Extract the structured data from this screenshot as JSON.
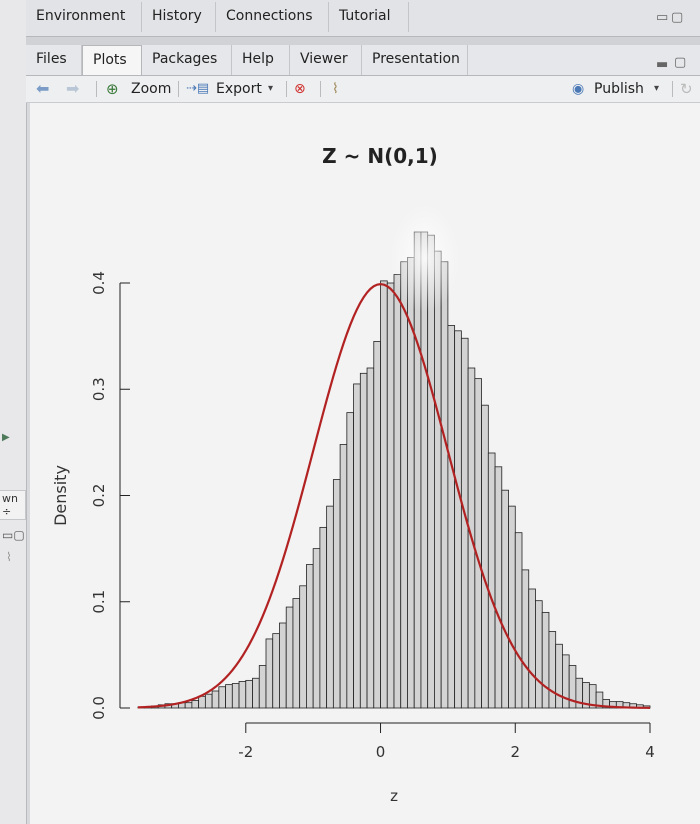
{
  "top_tabs": [
    "Environment",
    "History",
    "Connections",
    "Tutorial"
  ],
  "sub_tabs": [
    "Files",
    "Plots",
    "Packages",
    "Help",
    "Viewer",
    "Presentation"
  ],
  "active_sub_tab": "Plots",
  "toolbar": {
    "zoom_label": "Zoom",
    "export_label": "Export",
    "publish_label": "Publish"
  },
  "left_strip": {
    "dropdown_text": "wn"
  },
  "icons": [
    "back-arrow-icon",
    "forward-arrow-icon",
    "zoom-icon",
    "export-icon",
    "remove-plot-icon",
    "broom-icon",
    "publish-icon",
    "refresh-icon",
    "minimize-icon",
    "maximize-icon"
  ],
  "colors": {
    "curve": "#b22222",
    "bar_fill": "#d3d3d3",
    "bar_stroke": "#222222"
  },
  "chart_data": {
    "type": "bar",
    "title": "Z ~ N(0,1)",
    "xlabel": "z",
    "ylabel": "Density",
    "xlim": [
      -3.6,
      4.0
    ],
    "ylim": [
      0,
      0.45
    ],
    "x_ticks": [
      "-2",
      "0",
      "2",
      "4"
    ],
    "y_ticks": [
      "0.0",
      "0.1",
      "0.2",
      "0.3",
      "0.4"
    ],
    "bin_width": 0.1,
    "bins_start": -3.6,
    "density": [
      0.001,
      0.001,
      0.002,
      0.003,
      0.004,
      0.004,
      0.005,
      0.005,
      0.007,
      0.011,
      0.013,
      0.016,
      0.02,
      0.022,
      0.023,
      0.025,
      0.026,
      0.028,
      0.04,
      0.065,
      0.07,
      0.08,
      0.095,
      0.103,
      0.115,
      0.135,
      0.15,
      0.17,
      0.19,
      0.215,
      0.248,
      0.278,
      0.305,
      0.315,
      0.32,
      0.345,
      0.402,
      0.4,
      0.408,
      0.42,
      0.424,
      0.448,
      0.448,
      0.445,
      0.43,
      0.42,
      0.36,
      0.355,
      0.348,
      0.32,
      0.31,
      0.285,
      0.24,
      0.227,
      0.205,
      0.19,
      0.165,
      0.13,
      0.112,
      0.101,
      0.09,
      0.072,
      0.06,
      0.05,
      0.04,
      0.028,
      0.024,
      0.022,
      0.015,
      0.008,
      0.006,
      0.006,
      0.005,
      0.004,
      0.003,
      0.002
    ],
    "series": [
      {
        "type": "bar",
        "values_key": "density"
      },
      {
        "type": "line",
        "function": "normal_pdf",
        "mean": 0,
        "sd": 1
      }
    ],
    "grid": false,
    "legend": "none"
  }
}
